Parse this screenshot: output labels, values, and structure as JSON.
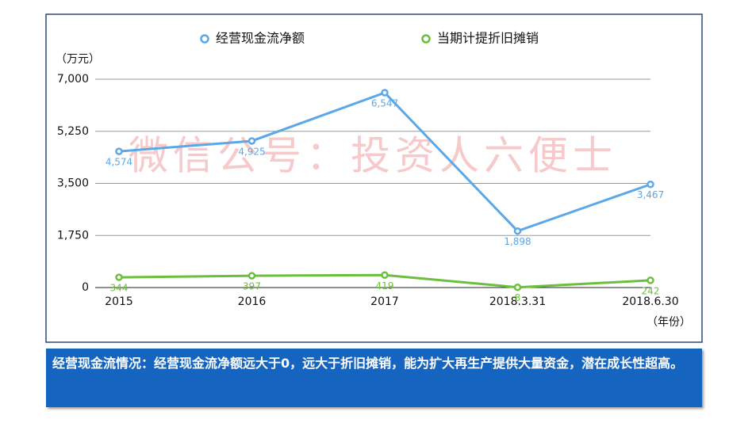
{
  "chart_data": {
    "type": "line",
    "categories": [
      "2015",
      "2016",
      "2017",
      "2018.3.31",
      "2018.6.30"
    ],
    "series": [
      {
        "name": "经营现金流净额",
        "color": "#5aa8ea",
        "values": [
          4574,
          4925,
          6547,
          1898,
          3467
        ],
        "value_labels": [
          "4,574",
          "4,925",
          "6,547",
          "1,898",
          "3,467"
        ]
      },
      {
        "name": "当期计提折旧摊销",
        "color": "#6cbf3c",
        "values": [
          344,
          397,
          419,
          8,
          242
        ],
        "value_labels": [
          "344",
          "397",
          "419",
          "8",
          "242"
        ]
      }
    ],
    "ylim": [
      0,
      7000
    ],
    "yticks": [
      0,
      {
        "value": 1750,
        "label": "1,750"
      },
      {
        "value": 3500,
        "label": "3,500"
      },
      {
        "value": 5250,
        "label": "5,250"
      },
      {
        "value": 7000,
        "label": "7,000"
      }
    ],
    "grid": true,
    "y_label": "（万元）",
    "x_label": "（年份）",
    "watermark": "微信公号：投资人六便士",
    "annotation": "经营现金流情况：经营现金流净额远大于0，远大于折旧摊销，能为扩大再生产提供大量资金，潜在成长性超高。"
  }
}
